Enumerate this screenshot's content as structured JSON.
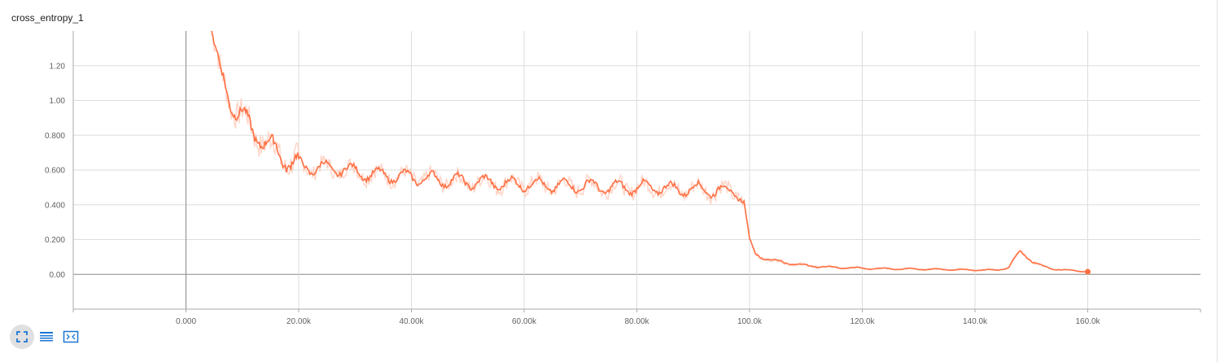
{
  "card": {
    "title": "cross_entropy_1"
  },
  "toolbar": {
    "buttons": [
      {
        "icon": "expand-icon",
        "active": true
      },
      {
        "icon": "data-table-icon",
        "active": false
      },
      {
        "icon": "fit-domain-icon",
        "active": false
      }
    ]
  },
  "colors": {
    "series": "#ff7043",
    "series_raw": "#ffccbc",
    "grid": "#dddddd",
    "axis": "#aaaaaa",
    "zero_line": "#888888"
  },
  "chart_data": {
    "type": "line",
    "title": "cross_entropy_1",
    "xlabel": "",
    "ylabel": "",
    "xlim": [
      -20000,
      180000
    ],
    "ylim": [
      -0.2,
      1.4
    ],
    "grid": true,
    "x_ticks": [
      {
        "value": 0,
        "label": "0.000"
      },
      {
        "value": 20000,
        "label": "20.00k"
      },
      {
        "value": 40000,
        "label": "40.00k"
      },
      {
        "value": 60000,
        "label": "60.00k"
      },
      {
        "value": 80000,
        "label": "80.00k"
      },
      {
        "value": 100000,
        "label": "100.0k"
      },
      {
        "value": 120000,
        "label": "120.0k"
      },
      {
        "value": 140000,
        "label": "140.0k"
      },
      {
        "value": 160000,
        "label": "160.0k"
      }
    ],
    "y_ticks": [
      {
        "value": 0,
        "label": "0.00"
      },
      {
        "value": 0.2,
        "label": "0.200"
      },
      {
        "value": 0.4,
        "label": "0.400"
      },
      {
        "value": 0.6,
        "label": "0.600"
      },
      {
        "value": 0.8,
        "label": "0.800"
      },
      {
        "value": 1.0,
        "label": "1.00"
      },
      {
        "value": 1.2,
        "label": "1.20"
      }
    ],
    "series": [
      {
        "x": [
          4500,
          5000,
          6000,
          7000,
          8000,
          9000,
          10000,
          11000,
          12000,
          13000,
          14000,
          15000,
          16000,
          17000,
          18000,
          19000,
          20000,
          22000,
          24000,
          26000,
          28000,
          30000,
          32000,
          34000,
          36000,
          38000,
          40000,
          42000,
          44000,
          46000,
          48000,
          50000,
          52000,
          54000,
          56000,
          58000,
          60000,
          62000,
          64000,
          66000,
          68000,
          70000,
          72000,
          74000,
          76000,
          78000,
          80000,
          82000,
          84000,
          86000,
          88000,
          90000,
          92000,
          94000,
          96000,
          98000,
          99000,
          100000,
          101000,
          102000,
          104000,
          106000,
          108000,
          110000,
          115000,
          120000,
          125000,
          130000,
          135000,
          140000,
          144000,
          146000,
          147000,
          148000,
          149000,
          150000,
          151000,
          152000,
          154000,
          156000,
          158000,
          160000
        ],
        "y": [
          1.4,
          1.32,
          1.15,
          1.08,
          1.0,
          0.94,
          0.91,
          0.86,
          0.82,
          0.8,
          0.76,
          0.73,
          0.71,
          0.68,
          0.66,
          0.64,
          0.63,
          0.61,
          0.62,
          0.6,
          0.61,
          0.59,
          0.58,
          0.57,
          0.57,
          0.56,
          0.56,
          0.55,
          0.55,
          0.54,
          0.54,
          0.53,
          0.53,
          0.53,
          0.52,
          0.52,
          0.52,
          0.52,
          0.51,
          0.51,
          0.51,
          0.51,
          0.51,
          0.5,
          0.5,
          0.5,
          0.5,
          0.5,
          0.5,
          0.49,
          0.49,
          0.49,
          0.49,
          0.48,
          0.48,
          0.47,
          0.42,
          0.2,
          0.12,
          0.1,
          0.08,
          0.07,
          0.06,
          0.05,
          0.04,
          0.035,
          0.032,
          0.03,
          0.028,
          0.025,
          0.025,
          0.04,
          0.09,
          0.13,
          0.11,
          0.08,
          0.06,
          0.045,
          0.03,
          0.025,
          0.02,
          0.015
        ]
      }
    ]
  }
}
